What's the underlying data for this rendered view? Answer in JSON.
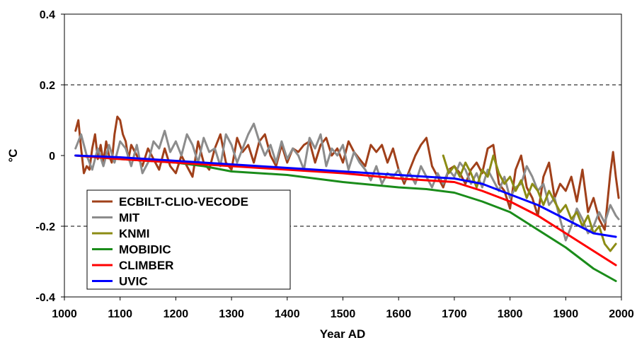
{
  "chart_data": {
    "type": "line",
    "title": "",
    "xlabel": "Year AD",
    "ylabel": "°C",
    "xlim": [
      1000,
      2000
    ],
    "ylim": [
      -0.4,
      0.4
    ],
    "x_ticks": [
      "1000",
      "1100",
      "1200",
      "1300",
      "1400",
      "1500",
      "1600",
      "1700",
      "1800",
      "1900",
      "2000"
    ],
    "y_ticks": [
      "0.4",
      "0.2",
      "0",
      "-0.2",
      "-0.4"
    ],
    "gridlines_y": [
      0.2,
      -0.2
    ],
    "legend_position": "bottom-left",
    "series": [
      {
        "name": "ECBILT-CLIO-VECODE",
        "color": "#a0401a",
        "x": [
          1020,
          1025,
          1030,
          1035,
          1040,
          1045,
          1050,
          1055,
          1060,
          1065,
          1070,
          1075,
          1080,
          1085,
          1090,
          1095,
          1100,
          1105,
          1110,
          1115,
          1120,
          1130,
          1140,
          1150,
          1160,
          1170,
          1180,
          1190,
          1200,
          1210,
          1220,
          1230,
          1240,
          1250,
          1260,
          1270,
          1280,
          1290,
          1300,
          1310,
          1320,
          1330,
          1340,
          1350,
          1360,
          1370,
          1380,
          1390,
          1400,
          1410,
          1420,
          1430,
          1440,
          1450,
          1460,
          1470,
          1480,
          1490,
          1500,
          1510,
          1520,
          1530,
          1540,
          1550,
          1560,
          1570,
          1580,
          1590,
          1600,
          1610,
          1620,
          1630,
          1640,
          1650,
          1660,
          1670,
          1680,
          1690,
          1700,
          1710,
          1720,
          1730,
          1740,
          1750,
          1760,
          1770,
          1780,
          1790,
          1800,
          1810,
          1820,
          1830,
          1840,
          1850,
          1860,
          1870,
          1880,
          1890,
          1900,
          1910,
          1920,
          1930,
          1940,
          1950,
          1960,
          1970,
          1980,
          1985,
          1990,
          1995
        ],
        "y": [
          0.07,
          0.1,
          0.02,
          -0.05,
          -0.03,
          -0.04,
          0.02,
          0.06,
          -0.01,
          0.03,
          -0.02,
          0.04,
          0.0,
          -0.02,
          0.06,
          0.11,
          0.1,
          0.06,
          0.04,
          -0.01,
          0.03,
          0.0,
          -0.03,
          0.02,
          -0.01,
          -0.04,
          0.02,
          -0.03,
          -0.05,
          0.0,
          -0.03,
          -0.06,
          0.04,
          -0.02,
          -0.04,
          0.02,
          0.06,
          -0.02,
          -0.04,
          0.05,
          0.01,
          0.03,
          -0.02,
          0.04,
          0.06,
          0.0,
          -0.03,
          0.03,
          -0.02,
          0.02,
          0.01,
          0.03,
          0.04,
          -0.02,
          0.03,
          0.05,
          0.0,
          0.02,
          -0.02,
          0.04,
          0.01,
          -0.01,
          -0.03,
          0.03,
          0.01,
          0.03,
          -0.02,
          0.02,
          -0.04,
          -0.08,
          -0.04,
          0.0,
          0.03,
          0.05,
          -0.03,
          -0.06,
          -0.09,
          -0.04,
          -0.03,
          -0.05,
          -0.08,
          -0.04,
          -0.02,
          -0.05,
          0.02,
          0.03,
          -0.08,
          -0.1,
          -0.15,
          -0.04,
          0.0,
          -0.09,
          -0.12,
          -0.17,
          -0.06,
          -0.02,
          -0.12,
          -0.08,
          -0.1,
          -0.06,
          -0.13,
          -0.04,
          -0.16,
          -0.12,
          -0.18,
          -0.21,
          -0.05,
          0.01,
          -0.06,
          -0.12
        ]
      },
      {
        "name": "MIT",
        "color": "#8c8c8c",
        "x": [
          1020,
          1030,
          1040,
          1050,
          1060,
          1070,
          1080,
          1090,
          1100,
          1110,
          1120,
          1130,
          1140,
          1150,
          1160,
          1170,
          1180,
          1190,
          1200,
          1210,
          1220,
          1230,
          1240,
          1250,
          1260,
          1270,
          1280,
          1290,
          1300,
          1310,
          1320,
          1330,
          1340,
          1350,
          1360,
          1370,
          1380,
          1390,
          1400,
          1410,
          1420,
          1430,
          1440,
          1450,
          1460,
          1470,
          1480,
          1490,
          1500,
          1510,
          1520,
          1530,
          1540,
          1550,
          1560,
          1570,
          1580,
          1590,
          1600,
          1610,
          1620,
          1630,
          1640,
          1650,
          1660,
          1670,
          1680,
          1690,
          1700,
          1710,
          1720,
          1730,
          1740,
          1750,
          1760,
          1770,
          1780,
          1790,
          1800,
          1810,
          1820,
          1830,
          1840,
          1850,
          1860,
          1870,
          1880,
          1890,
          1900,
          1910,
          1920,
          1930,
          1940,
          1950,
          1960,
          1970,
          1980,
          1990,
          1995
        ],
        "y": [
          0.02,
          0.06,
          0.0,
          -0.04,
          0.02,
          -0.03,
          0.03,
          -0.02,
          0.04,
          0.02,
          -0.03,
          0.03,
          -0.05,
          -0.02,
          0.04,
          0.02,
          0.07,
          0.01,
          0.04,
          0.0,
          0.06,
          0.03,
          -0.02,
          0.05,
          0.01,
          0.02,
          -0.03,
          0.06,
          0.03,
          -0.02,
          0.02,
          0.06,
          0.09,
          0.04,
          0.0,
          0.03,
          -0.02,
          0.04,
          -0.01,
          0.02,
          0.0,
          -0.04,
          0.05,
          0.02,
          0.06,
          -0.03,
          0.02,
          0.0,
          0.03,
          -0.04,
          0.01,
          -0.02,
          -0.04,
          -0.07,
          -0.03,
          -0.08,
          -0.05,
          -0.06,
          -0.04,
          -0.07,
          -0.05,
          -0.08,
          -0.03,
          -0.06,
          -0.09,
          -0.05,
          -0.08,
          -0.04,
          -0.06,
          -0.02,
          -0.04,
          -0.08,
          -0.05,
          -0.09,
          -0.04,
          -0.07,
          -0.1,
          -0.06,
          -0.12,
          -0.09,
          -0.08,
          -0.03,
          -0.06,
          -0.1,
          -0.08,
          -0.14,
          -0.12,
          -0.18,
          -0.24,
          -0.2,
          -0.15,
          -0.18,
          -0.22,
          -0.2,
          -0.16,
          -0.19,
          -0.14,
          -0.17,
          -0.18
        ]
      },
      {
        "name": "KNMI",
        "color": "#8c8c14",
        "x": [
          1680,
          1690,
          1700,
          1710,
          1720,
          1730,
          1740,
          1750,
          1760,
          1770,
          1780,
          1790,
          1800,
          1810,
          1820,
          1830,
          1840,
          1850,
          1860,
          1870,
          1880,
          1890,
          1900,
          1910,
          1920,
          1930,
          1940,
          1950,
          1960,
          1970,
          1980,
          1990
        ],
        "y": [
          0.0,
          -0.05,
          -0.03,
          -0.06,
          -0.02,
          -0.05,
          -0.09,
          -0.04,
          -0.06,
          0.0,
          -0.05,
          -0.08,
          -0.06,
          -0.1,
          -0.07,
          -0.12,
          -0.08,
          -0.1,
          -0.14,
          -0.1,
          -0.13,
          -0.16,
          -0.14,
          -0.18,
          -0.16,
          -0.2,
          -0.17,
          -0.22,
          -0.2,
          -0.25,
          -0.27,
          -0.25
        ]
      },
      {
        "name": "MOBIDIC",
        "color": "#1a8c1a",
        "x": [
          1020,
          1100,
          1200,
          1250,
          1300,
          1400,
          1500,
          1600,
          1650,
          1700,
          1750,
          1800,
          1850,
          1900,
          1950,
          1990
        ],
        "y": [
          0.0,
          -0.01,
          -0.02,
          -0.03,
          -0.045,
          -0.055,
          -0.075,
          -0.09,
          -0.095,
          -0.105,
          -0.13,
          -0.16,
          -0.21,
          -0.26,
          -0.32,
          -0.355
        ]
      },
      {
        "name": "CLIMBER",
        "color": "#ff0000",
        "x": [
          1020,
          1100,
          1200,
          1300,
          1400,
          1500,
          1600,
          1650,
          1700,
          1750,
          1800,
          1850,
          1900,
          1950,
          1990
        ],
        "y": [
          0.0,
          -0.01,
          -0.02,
          -0.03,
          -0.04,
          -0.05,
          -0.065,
          -0.07,
          -0.075,
          -0.1,
          -0.13,
          -0.17,
          -0.22,
          -0.27,
          -0.31
        ]
      },
      {
        "name": "UVIC",
        "color": "#0000ff",
        "x": [
          1020,
          1100,
          1200,
          1300,
          1400,
          1500,
          1600,
          1650,
          1700,
          1750,
          1800,
          1850,
          1900,
          1950,
          1990
        ],
        "y": [
          0.0,
          -0.005,
          -0.015,
          -0.025,
          -0.035,
          -0.045,
          -0.055,
          -0.06,
          -0.065,
          -0.08,
          -0.11,
          -0.14,
          -0.18,
          -0.22,
          -0.23
        ]
      }
    ]
  }
}
